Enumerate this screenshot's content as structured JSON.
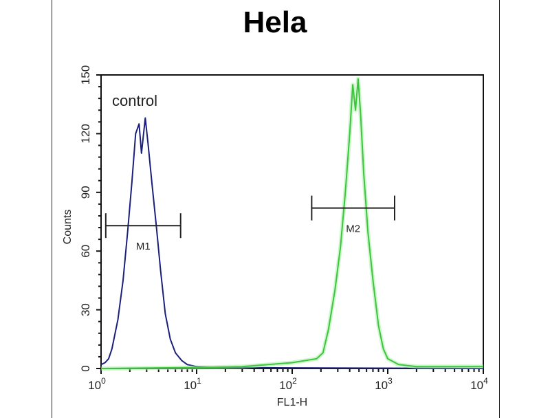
{
  "chart_data": {
    "type": "line",
    "title": "Hela",
    "xlabel": "FL1-H",
    "ylabel": "Counts",
    "x_scale": "log",
    "xlim": [
      1,
      10000
    ],
    "ylim": [
      0,
      150
    ],
    "x_ticks": [
      {
        "base": "10",
        "exp": "0"
      },
      {
        "base": "10",
        "exp": "1"
      },
      {
        "base": "10",
        "exp": "2"
      },
      {
        "base": "10",
        "exp": "3"
      },
      {
        "base": "10",
        "exp": "4"
      }
    ],
    "y_ticks": [
      "0",
      "30",
      "60",
      "90",
      "120",
      "150"
    ],
    "grid": false,
    "annotation": "control",
    "series": [
      {
        "color": "#1a1f7a",
        "points": [
          [
            1.0,
            2
          ],
          [
            1.1,
            3
          ],
          [
            1.2,
            5
          ],
          [
            1.3,
            10
          ],
          [
            1.5,
            25
          ],
          [
            1.7,
            45
          ],
          [
            1.9,
            70
          ],
          [
            2.1,
            95
          ],
          [
            2.3,
            120
          ],
          [
            2.5,
            125
          ],
          [
            2.65,
            110
          ],
          [
            2.9,
            128
          ],
          [
            3.1,
            115
          ],
          [
            3.4,
            95
          ],
          [
            3.8,
            72
          ],
          [
            4.2,
            50
          ],
          [
            4.7,
            28
          ],
          [
            5.3,
            15
          ],
          [
            6.0,
            8
          ],
          [
            7,
            4
          ],
          [
            8,
            2
          ],
          [
            10,
            1
          ],
          [
            15,
            0.5
          ],
          [
            100,
            0.3
          ],
          [
            10000,
            0
          ]
        ]
      },
      {
        "color": "#3ec43e",
        "points": [
          [
            1,
            0
          ],
          [
            10,
            0.5
          ],
          [
            30,
            1
          ],
          [
            100,
            3
          ],
          [
            180,
            5
          ],
          [
            210,
            8
          ],
          [
            240,
            20
          ],
          [
            280,
            40
          ],
          [
            320,
            62
          ],
          [
            360,
            90
          ],
          [
            400,
            120
          ],
          [
            430,
            145
          ],
          [
            460,
            132
          ],
          [
            490,
            148
          ],
          [
            520,
            130
          ],
          [
            560,
            100
          ],
          [
            620,
            70
          ],
          [
            700,
            45
          ],
          [
            800,
            22
          ],
          [
            900,
            10
          ],
          [
            1000,
            5
          ],
          [
            1300,
            2
          ],
          [
            2000,
            1
          ],
          [
            10000,
            1
          ]
        ]
      }
    ],
    "markers": [
      {
        "label": "M1",
        "x_range": [
          1.12,
          6.8
        ],
        "y": 73
      },
      {
        "label": "M2",
        "x_range": [
          160,
          1180
        ],
        "y": 82
      }
    ]
  }
}
